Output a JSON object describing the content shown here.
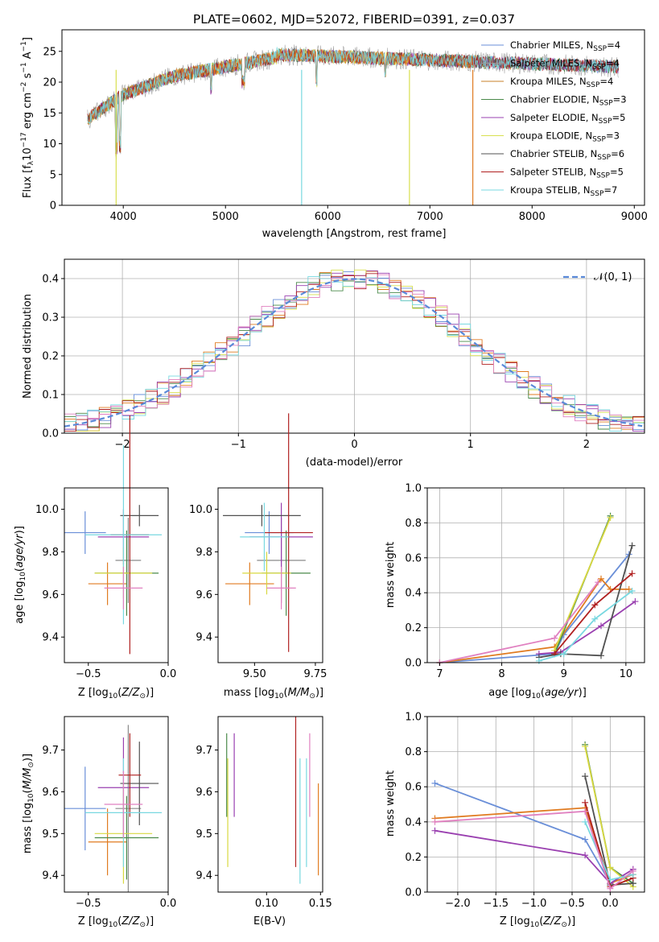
{
  "title": "PLATE=0602, MJD=52072, FIBERID=0391, z=0.037",
  "colors": [
    "#6a8fd8",
    "#8a8a8a",
    "#e07b20",
    "#4a8a4a",
    "#9a40b0",
    "#d8d840",
    "#505050",
    "#b02020",
    "#78d8e0",
    "#e080c0"
  ],
  "spectrum_legend": [
    {
      "label": "Chabrier MILES, N",
      "sub": "SSP",
      "suffix": "=4",
      "color": "#6a8fd8"
    },
    {
      "label": "Salpeter MILES, N",
      "sub": "SSP",
      "suffix": "=4",
      "color": "#9a9a9a"
    },
    {
      "label": "Kroupa MILES, N",
      "sub": "SSP",
      "suffix": "=4",
      "color": "#c8822a"
    },
    {
      "label": "Chabrier ELODIE, N",
      "sub": "SSP",
      "suffix": "=3",
      "color": "#4a8a4a"
    },
    {
      "label": "Salpeter ELODIE, N",
      "sub": "SSP",
      "suffix": "=5",
      "color": "#9a40b0"
    },
    {
      "label": "Kroupa ELODIE, N",
      "sub": "SSP",
      "suffix": "=3",
      "color": "#d8e050"
    },
    {
      "label": "Chabrier STELIB, N",
      "sub": "SSP",
      "suffix": "=6",
      "color": "#505050"
    },
    {
      "label": "Salpeter STELIB, N",
      "sub": "SSP",
      "suffix": "=5",
      "color": "#b02020"
    },
    {
      "label": "Kroupa STELIB, N",
      "sub": "SSP",
      "suffix": "=7",
      "color": "#78d8e0"
    }
  ],
  "hist_legend": "𝒩(0, 1)",
  "chart_data": [
    {
      "type": "line",
      "xlabel": "wavelength [Angstrom, rest frame]",
      "ylabel": "Flux [f_λ10^-17 erg cm^-2 s^-1 A^-1]",
      "xlim": [
        3400,
        9100
      ],
      "ylim": [
        0,
        28.5
      ],
      "xticks": [
        4000,
        5000,
        6000,
        7000,
        8000,
        9000
      ],
      "yticks": [
        0,
        5,
        10,
        15,
        20,
        25
      ],
      "x_range": [
        3650,
        8850
      ]
    },
    {
      "type": "histogram",
      "xlabel": "(data-model)/error",
      "ylabel": "Normed distribution",
      "xlim": [
        -2.5,
        2.5
      ],
      "ylim": [
        0,
        0.45
      ],
      "xticks": [
        -2,
        -1,
        0,
        1,
        2
      ],
      "yticks": [
        0.0,
        0.1,
        0.2,
        0.3,
        0.4
      ],
      "grid": true,
      "legend": "top-right"
    },
    {
      "type": "scatter",
      "xlabel": "Z [log10(Z/Z⊙)]",
      "ylabel": "age [log10(age/yr)]",
      "xlim": [
        -0.65,
        0.0
      ],
      "ylim": [
        9.28,
        10.1
      ],
      "xticks": [
        -0.5,
        0.0
      ],
      "xticklabels": [
        "−0.5",
        "0.0"
      ],
      "yticks": [
        9.4,
        9.6,
        9.8,
        10.0
      ],
      "points": [
        {
          "x": -0.52,
          "y": 9.89,
          "xerr": 0.13,
          "yerr": 0.1,
          "c": 0
        },
        {
          "x": -0.25,
          "y": 9.76,
          "xerr": 0.08,
          "yerr": 0.2,
          "c": 1
        },
        {
          "x": -0.38,
          "y": 9.65,
          "xerr": 0.12,
          "yerr": 0.1,
          "c": 2
        },
        {
          "x": -0.26,
          "y": 9.7,
          "xerr": 0.2,
          "yerr": 0.2,
          "c": 3
        },
        {
          "x": -0.28,
          "y": 9.87,
          "xerr": 0.16,
          "yerr": 0.13,
          "c": 4
        },
        {
          "x": -0.28,
          "y": 9.7,
          "xerr": 0.18,
          "yerr": 0.12,
          "c": 5
        },
        {
          "x": -0.18,
          "y": 9.97,
          "xerr": 0.12,
          "yerr": 0.05,
          "c": 6
        },
        {
          "x": -0.24,
          "y": 9.88,
          "xerr": 0.12,
          "yerr": 0.56,
          "c": 7
        },
        {
          "x": -0.28,
          "y": 9.88,
          "xerr": 0.24,
          "yerr": 0.42,
          "c": 8
        },
        {
          "x": -0.28,
          "y": 9.63,
          "xerr": 0.12,
          "yerr": 0.1,
          "c": 9
        }
      ]
    },
    {
      "type": "scatter",
      "xlabel": "mass [log10(M/M⊙)]",
      "ylabel": "",
      "xlim": [
        9.35,
        9.78
      ],
      "ylim": [
        9.28,
        10.1
      ],
      "xticks": [
        9.5,
        9.75
      ],
      "xticklabels": [
        "9.50",
        "9.75"
      ],
      "yticks": [
        9.4,
        9.6,
        9.8,
        10.0
      ],
      "points": [
        {
          "x": 9.56,
          "y": 9.89,
          "xerr": 0.1,
          "yerr": 0.1,
          "c": 0
        },
        {
          "x": 9.61,
          "y": 9.76,
          "xerr": 0.1,
          "yerr": 0.2,
          "c": 1
        },
        {
          "x": 9.48,
          "y": 9.65,
          "xerr": 0.1,
          "yerr": 0.1,
          "c": 2
        },
        {
          "x": 9.63,
          "y": 9.7,
          "xerr": 0.1,
          "yerr": 0.2,
          "c": 3
        },
        {
          "x": 9.61,
          "y": 9.87,
          "xerr": 0.13,
          "yerr": 0.16,
          "c": 4
        },
        {
          "x": 9.55,
          "y": 9.7,
          "xerr": 0.1,
          "yerr": 0.1,
          "c": 5
        },
        {
          "x": 9.53,
          "y": 9.97,
          "xerr": 0.16,
          "yerr": 0.05,
          "c": 6
        },
        {
          "x": 9.64,
          "y": 9.89,
          "xerr": 0.1,
          "yerr": 0.56,
          "c": 7
        },
        {
          "x": 9.54,
          "y": 9.87,
          "xerr": 0.1,
          "yerr": 0.16,
          "c": 8
        },
        {
          "x": 9.61,
          "y": 9.63,
          "xerr": 0.06,
          "yerr": 0.1,
          "c": 9
        }
      ]
    },
    {
      "type": "line",
      "xlabel": "age [log10(age/yr)]",
      "ylabel": "mass weight",
      "xlim": [
        6.8,
        10.3
      ],
      "ylim": [
        0,
        1
      ],
      "xticks": [
        7,
        8,
        9,
        10
      ],
      "yticks": [
        0.0,
        0.2,
        0.4,
        0.6,
        0.8,
        1.0
      ],
      "grid": true,
      "series": [
        {
          "c": 0,
          "x": [
            7.0,
            8.85,
            9.0,
            10.05
          ],
          "y": [
            0.0,
            0.05,
            0.16,
            0.62
          ]
        },
        {
          "c": 2,
          "x": [
            7.0,
            8.85,
            9.6,
            9.75,
            10.05
          ],
          "y": [
            0.0,
            0.09,
            0.48,
            0.42,
            0.42
          ]
        },
        {
          "c": 3,
          "x": [
            8.85,
            9.75
          ],
          "y": [
            0.05,
            0.84
          ]
        },
        {
          "c": 4,
          "x": [
            8.6,
            8.95,
            9.6,
            10.15
          ],
          "y": [
            0.05,
            0.06,
            0.21,
            0.35
          ]
        },
        {
          "c": 5,
          "x": [
            8.85,
            9.75
          ],
          "y": [
            0.07,
            0.83
          ]
        },
        {
          "c": 6,
          "x": [
            8.6,
            8.95,
            9.6,
            10.1
          ],
          "y": [
            0.03,
            0.05,
            0.04,
            0.67
          ]
        },
        {
          "c": 7,
          "x": [
            8.85,
            9.5,
            10.1
          ],
          "y": [
            0.05,
            0.33,
            0.51
          ]
        },
        {
          "c": 8,
          "x": [
            8.6,
            9.0,
            9.5,
            10.1
          ],
          "y": [
            0.01,
            0.05,
            0.25,
            0.41
          ]
        },
        {
          "c": 9,
          "x": [
            7.0,
            8.85,
            9.55
          ],
          "y": [
            0.0,
            0.14,
            0.46
          ]
        }
      ]
    },
    {
      "type": "scatter",
      "xlabel": "Z [log10(Z/Z⊙)]",
      "ylabel": "mass [log10(M/M⊙)]",
      "xlim": [
        -0.65,
        0.0
      ],
      "ylim": [
        9.36,
        9.78
      ],
      "xticks": [
        -0.5,
        0.0
      ],
      "xticklabels": [
        "−0.5",
        "0.0"
      ],
      "yticks": [
        9.4,
        9.5,
        9.6,
        9.7
      ],
      "points": [
        {
          "x": -0.52,
          "y": 9.56,
          "xerr": 0.13,
          "yerr": 0.1,
          "c": 0
        },
        {
          "x": -0.25,
          "y": 9.56,
          "xerr": 0.08,
          "yerr": 0.2,
          "c": 1
        },
        {
          "x": -0.38,
          "y": 9.48,
          "xerr": 0.12,
          "yerr": 0.08,
          "c": 2
        },
        {
          "x": -0.26,
          "y": 9.49,
          "xerr": 0.2,
          "yerr": 0.1,
          "c": 3
        },
        {
          "x": -0.28,
          "y": 9.61,
          "xerr": 0.16,
          "yerr": 0.12,
          "c": 4
        },
        {
          "x": -0.28,
          "y": 9.5,
          "xerr": 0.18,
          "yerr": 0.12,
          "c": 5
        },
        {
          "x": -0.18,
          "y": 9.62,
          "xerr": 0.12,
          "yerr": 0.1,
          "c": 6
        },
        {
          "x": -0.24,
          "y": 9.64,
          "xerr": 0.07,
          "yerr": 0.1,
          "c": 7
        },
        {
          "x": -0.28,
          "y": 9.55,
          "xerr": 0.24,
          "yerr": 0.13,
          "c": 8
        },
        {
          "x": -0.28,
          "y": 9.57,
          "xerr": 0.12,
          "yerr": 0.08,
          "c": 9
        }
      ]
    },
    {
      "type": "scatter",
      "xlabel": "E(B-V)",
      "ylabel": "",
      "xlim": [
        0.055,
        0.152
      ],
      "ylim": [
        9.36,
        9.78
      ],
      "xticks": [
        0.1,
        0.15
      ],
      "xticklabels": [
        "0.10",
        "0.15"
      ],
      "yticks": [
        9.4,
        9.5,
        9.6,
        9.7
      ],
      "points": [
        {
          "x": 0.063,
          "y": 9.64,
          "yerr": 0.1,
          "c": 3
        },
        {
          "x": 0.064,
          "y": 9.55,
          "yerr": 0.13,
          "c": 5
        },
        {
          "x": 0.07,
          "y": 9.64,
          "yerr": 0.1,
          "c": 4
        },
        {
          "x": 0.127,
          "y": 9.6,
          "yerr": 0.18,
          "c": 7
        },
        {
          "x": 0.131,
          "y": 9.53,
          "yerr": 0.15,
          "c": 8
        },
        {
          "x": 0.137,
          "y": 9.55,
          "yerr": 0.13,
          "c": 8
        },
        {
          "x": 0.14,
          "y": 9.64,
          "yerr": 0.1,
          "c": 9
        },
        {
          "x": 0.148,
          "y": 9.51,
          "yerr": 0.11,
          "c": 2
        }
      ]
    },
    {
      "type": "line",
      "xlabel": "Z [log10(Z/Z⊙)]",
      "ylabel": "mass weight",
      "xlim": [
        -2.4,
        0.45
      ],
      "ylim": [
        0,
        1
      ],
      "xticks": [
        -2.0,
        -1.5,
        -1.0,
        -0.5,
        0.0
      ],
      "xticklabels": [
        "−2.0",
        "−1.5",
        "−1.0",
        "−0.5",
        "0.0"
      ],
      "yticks": [
        0.0,
        0.2,
        0.4,
        0.6,
        0.8,
        1.0
      ],
      "grid": true,
      "series": [
        {
          "c": 0,
          "x": [
            -2.3,
            -0.33,
            0.0
          ],
          "y": [
            0.62,
            0.3,
            0.05
          ]
        },
        {
          "c": 2,
          "x": [
            -2.3,
            -0.33,
            0.0,
            0.3
          ],
          "y": [
            0.42,
            0.48,
            0.05,
            0.1
          ]
        },
        {
          "c": 3,
          "x": [
            -0.33,
            0.0,
            0.3
          ],
          "y": [
            0.84,
            0.14,
            0.05
          ]
        },
        {
          "c": 4,
          "x": [
            -2.3,
            -0.33,
            0.0,
            0.3
          ],
          "y": [
            0.35,
            0.21,
            0.05,
            0.13
          ]
        },
        {
          "c": 5,
          "x": [
            -0.33,
            0.0,
            0.3
          ],
          "y": [
            0.83,
            0.14,
            0.03
          ]
        },
        {
          "c": 6,
          "x": [
            -0.33,
            0.0,
            0.3
          ],
          "y": [
            0.66,
            0.04,
            0.05
          ]
        },
        {
          "c": 7,
          "x": [
            -0.33,
            0.0,
            0.3
          ],
          "y": [
            0.51,
            0.03,
            0.08
          ]
        },
        {
          "c": 8,
          "x": [
            -0.33,
            0.0,
            0.3
          ],
          "y": [
            0.4,
            0.07,
            0.1
          ]
        },
        {
          "c": 9,
          "x": [
            -2.3,
            -0.33,
            0.0,
            0.3
          ],
          "y": [
            0.4,
            0.46,
            0.02,
            0.12
          ]
        }
      ]
    }
  ]
}
